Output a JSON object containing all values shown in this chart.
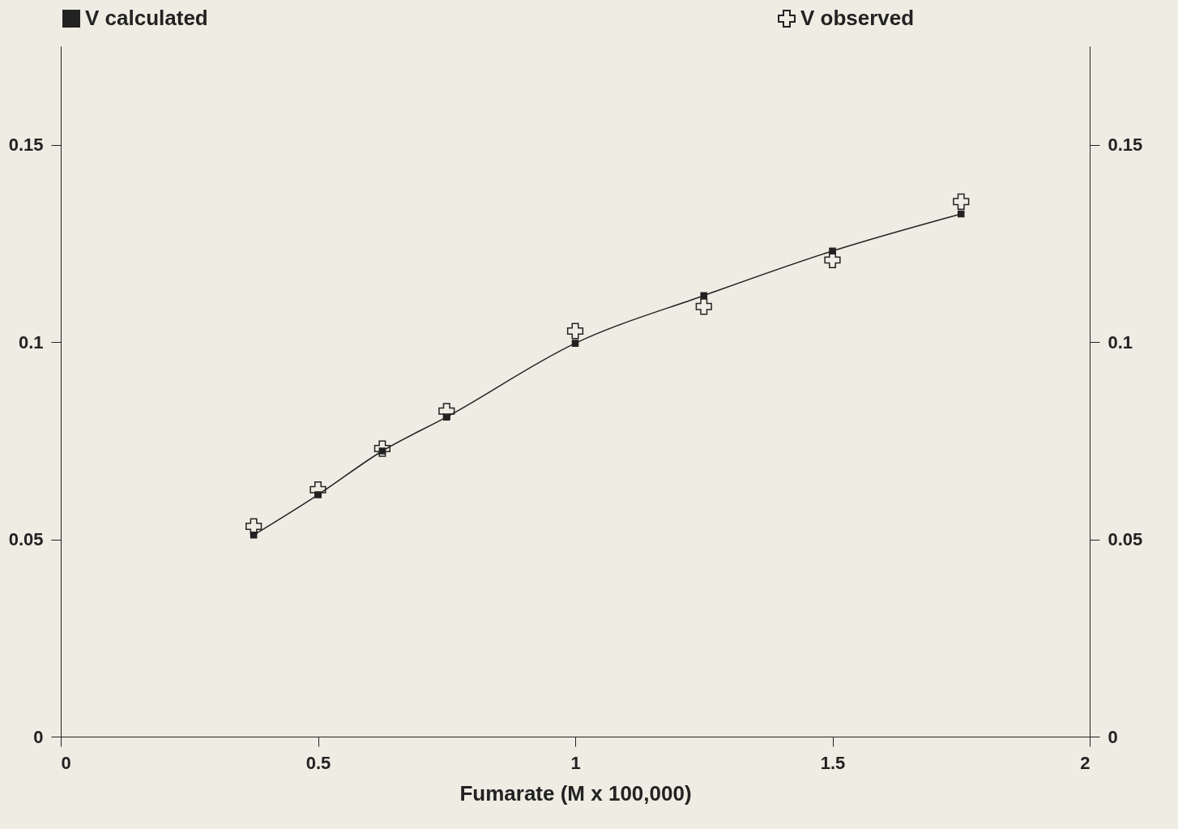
{
  "chart_data": {
    "type": "line",
    "xlabel": "Fumarate (M x 100,000)",
    "x": [
      0.375,
      0.5,
      0.625,
      0.75,
      1,
      1.25,
      1.5,
      1.75
    ],
    "series": [
      {
        "name": "V calculated",
        "marker": "square",
        "color": "#222222",
        "values": [
          0.0511,
          0.0613,
          0.0724,
          0.081,
          0.0997,
          0.1118,
          0.1231,
          0.1325
        ]
      },
      {
        "name": "V observed",
        "type": "scatter",
        "marker": "cross",
        "color": "#222222",
        "values": [
          0.0533,
          0.0626,
          0.073,
          0.0825,
          0.1028,
          0.109,
          0.1208,
          0.1356
        ]
      }
    ],
    "xlim": [
      0,
      2
    ],
    "xticks": [
      0,
      0.5,
      1,
      1.5,
      2
    ],
    "ylim": [
      0,
      0.175
    ],
    "yticks": [
      0,
      0.05,
      0.1,
      0.15
    ],
    "y2lim": [
      0,
      0.175
    ],
    "y2ticks": [
      0,
      0.05,
      0.1,
      0.15
    ],
    "grid": false,
    "legend": "top"
  }
}
